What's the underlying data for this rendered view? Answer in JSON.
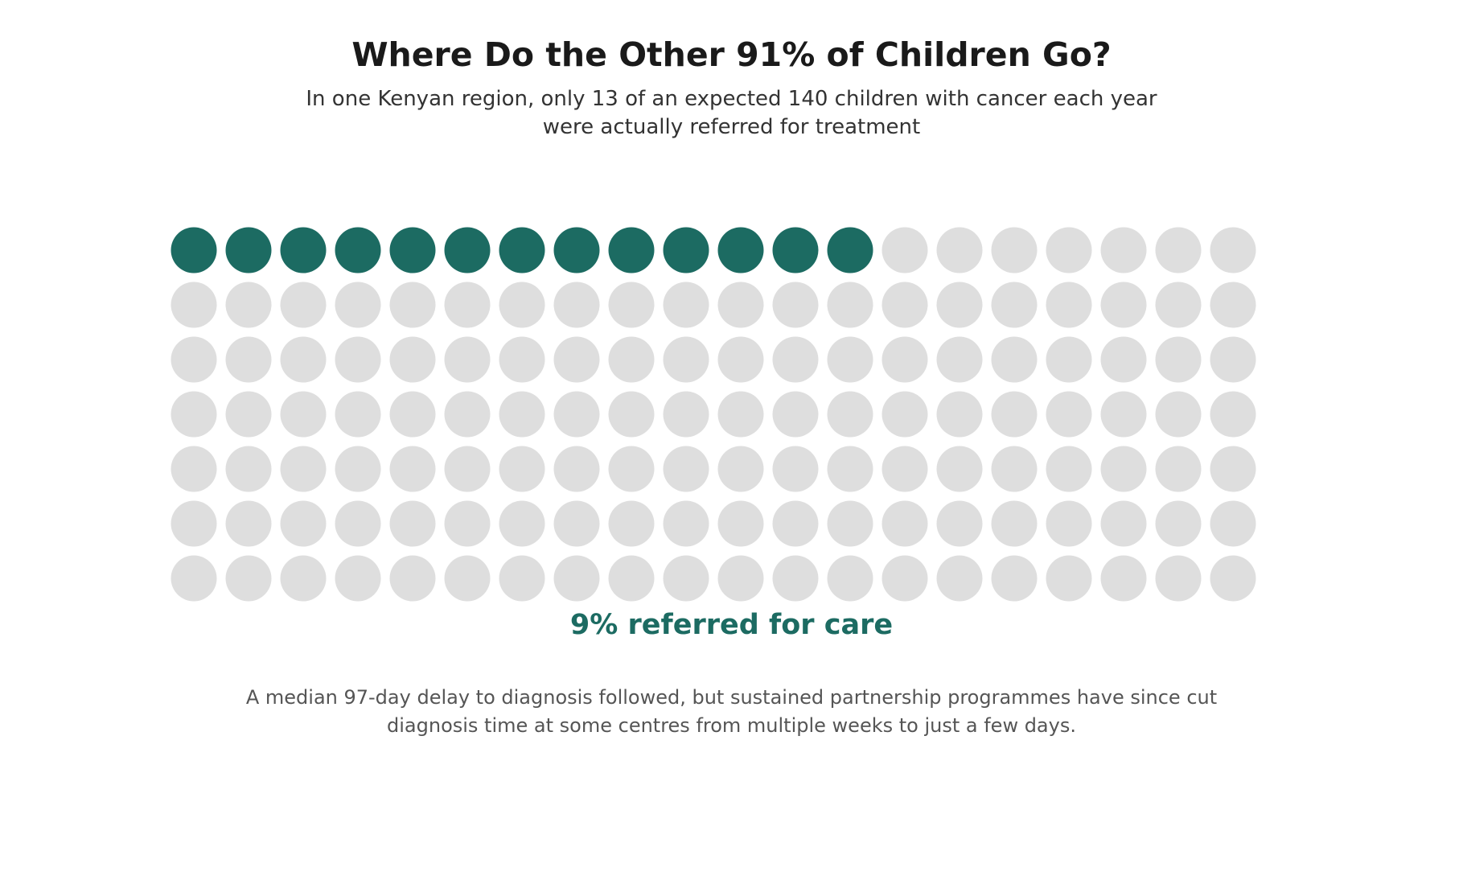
{
  "title": "Where Do the Other 91% of Children Go?",
  "subtitle": {
    "line1": "In one Kenyan region, only 13 of an expected 140 children with cancer each year",
    "line2": "were actually referred for treatment"
  },
  "chart_data": {
    "type": "waffle",
    "total": 140,
    "highlighted": 13,
    "columns": 20,
    "rows": 7,
    "highlight_color": "#1c6b62",
    "base_color": "#dedede",
    "annotation": "9% referred for care"
  },
  "footnote": {
    "line1": "A median 97-day delay to diagnosis followed, but sustained partnership programmes have since cut",
    "line2": "diagnosis time at some centres from multiple weeks to just a few days."
  }
}
